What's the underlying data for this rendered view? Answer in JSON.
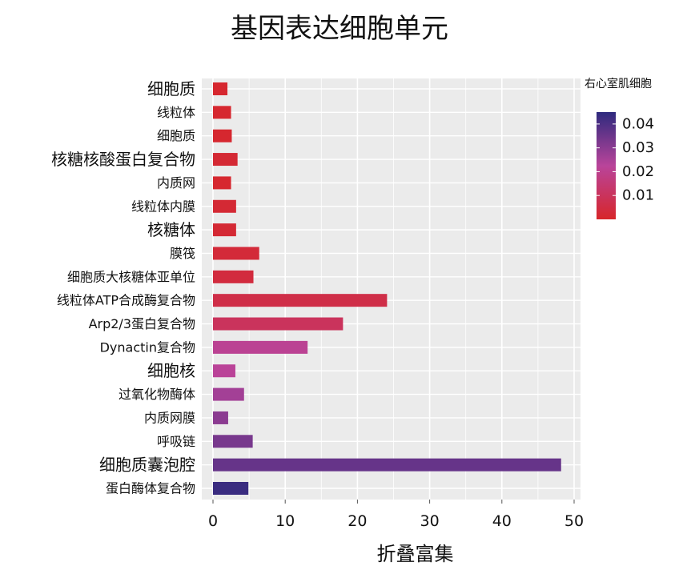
{
  "chart_data": {
    "type": "bar",
    "orientation": "horizontal",
    "title": "基因表达细胞单元",
    "xlabel": "折叠富集",
    "ylabel": "",
    "xlim": [
      0,
      50
    ],
    "xticks": [
      0,
      10,
      20,
      30,
      40,
      50
    ],
    "grid": true,
    "legend": {
      "title": "右心室肌细胞",
      "placement": "right",
      "type": "colorbar",
      "ticks": [
        0.01,
        0.02,
        0.03,
        0.04
      ],
      "range": [
        0.0,
        0.045
      ],
      "low_color": "#d7262a",
      "mid_color": "#b9449a",
      "high_color": "#2e2a7e"
    },
    "categories": [
      "细胞质",
      "线粒体",
      "细胞质",
      "核糖核酸蛋白复合物",
      "内质网",
      "线粒体内膜",
      "核糖体",
      "膜筏",
      "细胞质大核糖体亚单位",
      "线粒体ATP合成酶复合物",
      "Arp2/3蛋白复合物",
      "Dynactin复合物",
      "细胞核",
      "过氧化物酶体",
      "内质网膜",
      "呼吸链",
      "细胞质囊泡腔",
      "蛋白酶体复合物"
    ],
    "values": [
      2.0,
      2.5,
      2.6,
      3.4,
      2.5,
      3.2,
      3.2,
      6.4,
      5.6,
      24.1,
      18.0,
      13.1,
      3.1,
      4.3,
      2.1,
      5.5,
      48.2,
      4.9
    ],
    "color_values": [
      0.001,
      0.001,
      0.001,
      0.002,
      0.001,
      0.002,
      0.002,
      0.003,
      0.004,
      0.006,
      0.01,
      0.021,
      0.022,
      0.026,
      0.03,
      0.033,
      0.036,
      0.043
    ]
  }
}
